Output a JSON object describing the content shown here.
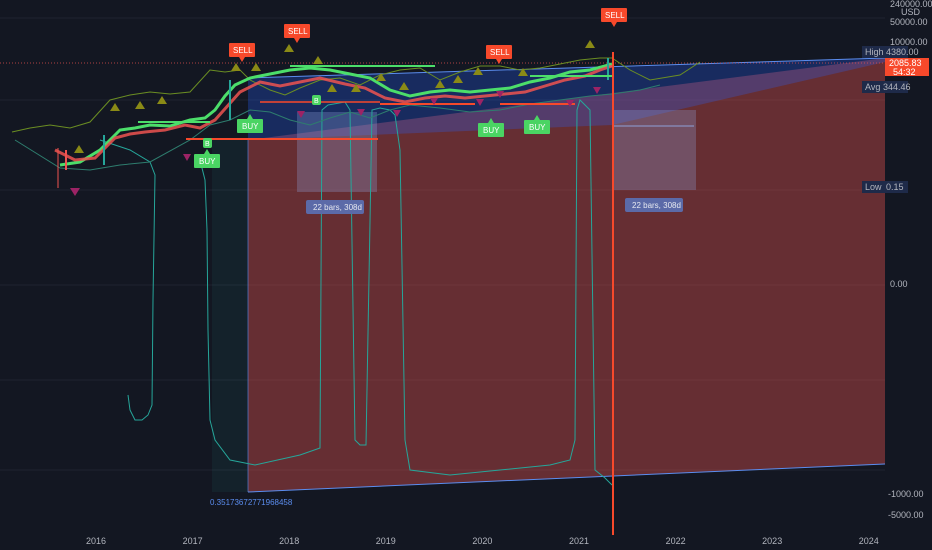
{
  "chart_data": {
    "type": "candlestick",
    "currency": "USD",
    "x_tick_labels": [
      "2016",
      "2017",
      "2018",
      "2019",
      "2020",
      "2021",
      "2022",
      "2023",
      "2024"
    ],
    "y_tick_labels": [
      "240000.00",
      "50000.00",
      "10000.00",
      "0.00",
      "-1000.00",
      "-5000.00"
    ],
    "price_badge": {
      "value": "2085.83",
      "countdown": "54:32"
    },
    "stats": [
      {
        "label": "High",
        "value": "4380.00"
      },
      {
        "label": "Avg",
        "value": "344.46"
      },
      {
        "label": "Low",
        "value": "0.15"
      }
    ],
    "signals": [
      {
        "type": "sell",
        "text": "SELL",
        "date": 2017.55
      },
      {
        "type": "sell",
        "text": "SELL",
        "date": 2018.1
      },
      {
        "type": "sell",
        "text": "SELL",
        "date": 2020.15
      },
      {
        "type": "sell",
        "text": "SELL",
        "date": 2021.35
      },
      {
        "type": "buy",
        "text": "BUY",
        "date": 2017.15
      },
      {
        "type": "buy",
        "text": "BUY",
        "date": 2017.6
      },
      {
        "type": "buy",
        "text": "BUY",
        "date": 2020.05
      },
      {
        "type": "buy",
        "text": "BUY",
        "date": 2020.55
      }
    ],
    "b_markers": [
      {
        "text": "B",
        "date": 2017.15
      },
      {
        "text": "B",
        "date": 2018.3
      }
    ],
    "measurements": [
      {
        "label": "22 bars, 308d",
        "start": 2018.1,
        "end": 2018.95
      },
      {
        "label": "22 bars, 308d",
        "start": 2021.4,
        "end": 2022.2
      }
    ],
    "annotation": "0.35173672771968458",
    "colors": {
      "background": "#131722",
      "up": "#26a69a",
      "bright_up": "#4cde6a",
      "down": "#ef5350",
      "sell": "#f7492b",
      "buy": "#4ad463",
      "olive": "#8a8a16",
      "magenta": "#9c2365",
      "stat_badge": "#1e2a49"
    }
  }
}
